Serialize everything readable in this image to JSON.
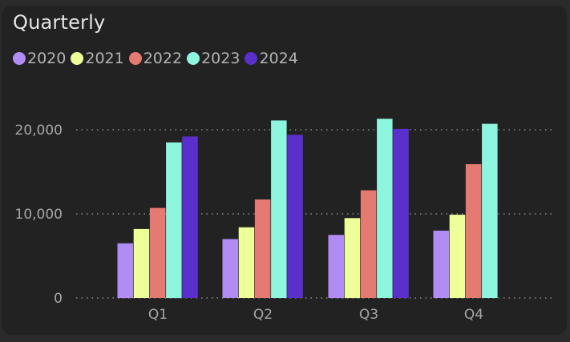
{
  "colors": {
    "background": "#222222",
    "grid": "#8c8c8c",
    "text": "#a6a6a6"
  },
  "chart_data": {
    "type": "bar",
    "title": "Quarterly",
    "xlabel": "",
    "ylabel": "",
    "categories": [
      "Q1",
      "Q2",
      "Q3",
      "Q4"
    ],
    "ylim": [
      0,
      22000
    ],
    "yticks": [
      0,
      10000,
      20000
    ],
    "ytick_labels": [
      "0",
      "10,000",
      "20,000"
    ],
    "grid": true,
    "legend_placement": "top-left",
    "series": [
      {
        "name": "2020",
        "color": "#b28cf5",
        "values": [
          6500,
          7000,
          7500,
          8000
        ]
      },
      {
        "name": "2021",
        "color": "#eeff99",
        "values": [
          8200,
          8400,
          9500,
          9900
        ]
      },
      {
        "name": "2022",
        "color": "#e57a73",
        "values": [
          10700,
          11700,
          12800,
          15900
        ]
      },
      {
        "name": "2023",
        "color": "#8ef5df",
        "values": [
          18500,
          21100,
          21300,
          20700
        ]
      },
      {
        "name": "2024",
        "color": "#5b2fcc",
        "values": [
          19200,
          19400,
          20100,
          null
        ]
      }
    ]
  }
}
